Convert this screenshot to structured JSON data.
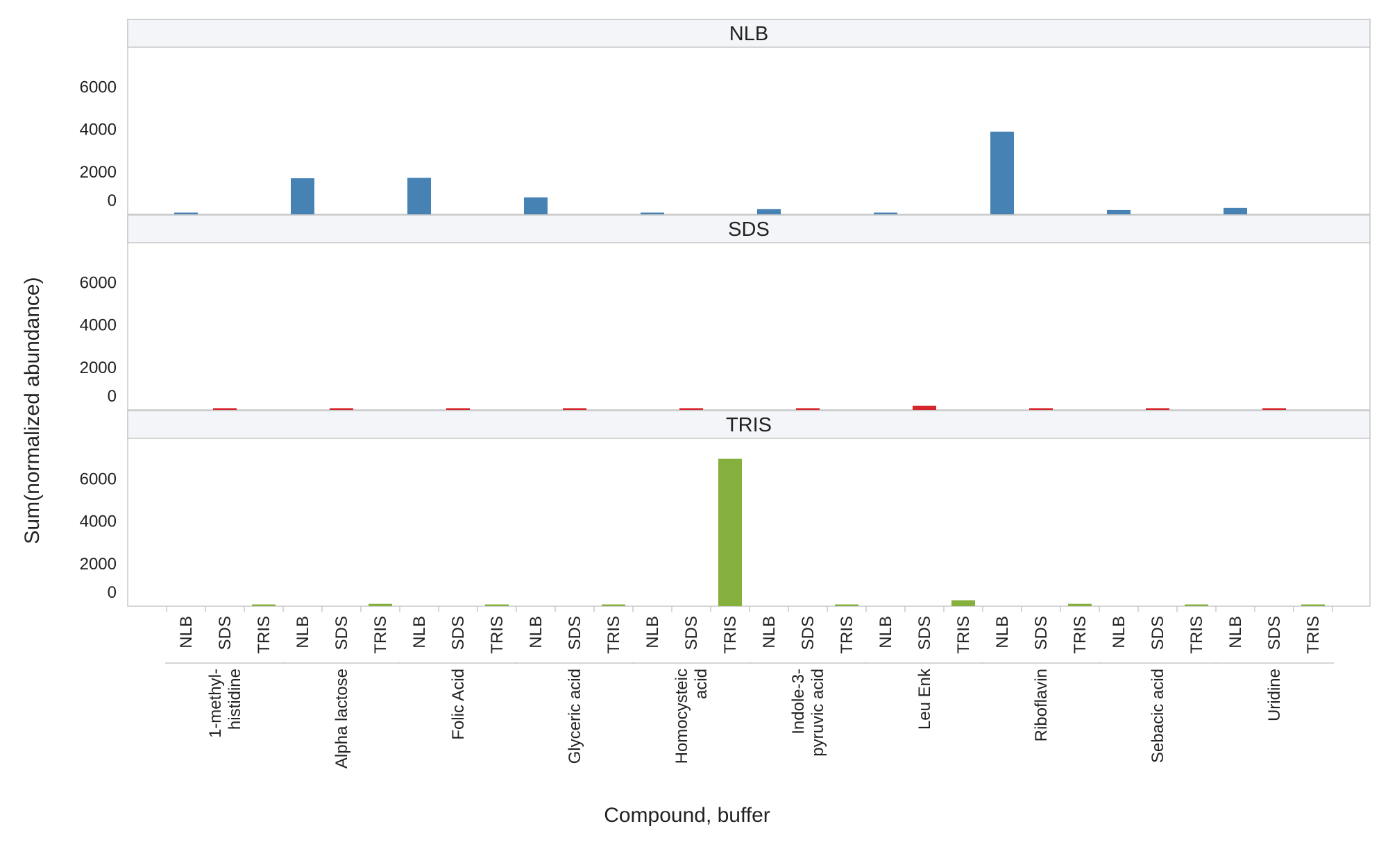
{
  "chart_data": {
    "type": "bar",
    "xlabel": "Compound, buffer",
    "ylabel": "Sum(normalized abundance)",
    "ylim": [
      0,
      7000
    ],
    "yticks": [
      0,
      2000,
      4000,
      6000
    ],
    "buffers": [
      "NLB",
      "SDS",
      "TRIS"
    ],
    "panels": [
      {
        "name": "NLB",
        "color": "#4682b4"
      },
      {
        "name": "SDS",
        "color": "#d7262b"
      },
      {
        "name": "TRIS",
        "color": "#86b03d"
      }
    ],
    "categories": [
      {
        "label_lines": [
          "1-methyl-",
          "histidine"
        ]
      },
      {
        "label_lines": [
          "Alpha lactose"
        ]
      },
      {
        "label_lines": [
          "Folic Acid"
        ]
      },
      {
        "label_lines": [
          "Glyceric acid"
        ]
      },
      {
        "label_lines": [
          "Homocysteic",
          "acid"
        ]
      },
      {
        "label_lines": [
          "Indole-3-",
          "pyruvic acid"
        ]
      },
      {
        "label_lines": [
          "Leu Enk"
        ]
      },
      {
        "label_lines": [
          "Riboflavin"
        ]
      },
      {
        "label_lines": [
          "Sebacic acid"
        ]
      },
      {
        "label_lines": [
          "Uridine"
        ]
      }
    ],
    "series": [
      {
        "name": "NLB",
        "values": [
          60,
          1700,
          1720,
          800,
          60,
          250,
          60,
          3900,
          200,
          300
        ]
      },
      {
        "name": "SDS",
        "values": [
          40,
          40,
          40,
          40,
          40,
          40,
          200,
          40,
          40,
          40
        ]
      },
      {
        "name": "TRIS",
        "values": [
          50,
          110,
          50,
          50,
          6950,
          50,
          280,
          110,
          50,
          50
        ]
      }
    ],
    "grid": false,
    "legend": "none"
  }
}
